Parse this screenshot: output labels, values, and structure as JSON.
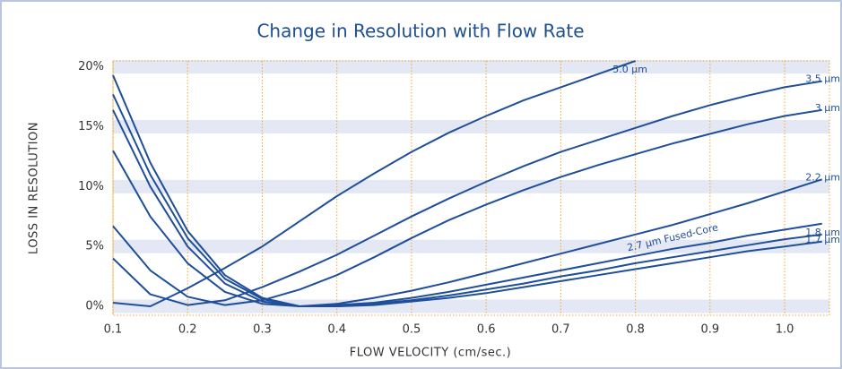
{
  "chart_data": {
    "type": "line",
    "title": "Change in Resolution with Flow Rate",
    "x_label": "FLOW VELOCITY (cm/sec.)",
    "y_label": "LOSS IN RESOLUTION",
    "x": [
      0.1,
      0.15,
      0.2,
      0.25,
      0.3,
      0.35,
      0.4,
      0.45,
      0.5,
      0.55,
      0.6,
      0.65,
      0.7,
      0.75,
      0.8,
      0.85,
      0.9,
      0.95,
      1.0,
      1.05
    ],
    "series": [
      {
        "name": "5.0 µm",
        "color": "#1f4e9a",
        "values": [
          0.3,
          0.0,
          1.5,
          3.2,
          5.0,
          7.1,
          9.2,
          11.1,
          12.9,
          14.5,
          15.9,
          17.2,
          18.3,
          19.4,
          20.5,
          null,
          null,
          null,
          null,
          null
        ]
      },
      {
        "name": "3.5 µm",
        "color": "#1f4e9a",
        "values": [
          4.0,
          1.0,
          0.1,
          0.5,
          1.6,
          2.9,
          4.3,
          5.9,
          7.5,
          9.0,
          10.4,
          11.7,
          12.9,
          13.9,
          14.9,
          15.9,
          16.8,
          17.6,
          18.3,
          18.8
        ]
      },
      {
        "name": "3 µm",
        "color": "#1f4e9a",
        "values": [
          6.7,
          3.0,
          0.8,
          0.1,
          0.5,
          1.4,
          2.6,
          4.1,
          5.7,
          7.2,
          8.5,
          9.7,
          10.8,
          11.8,
          12.7,
          13.6,
          14.4,
          15.2,
          15.9,
          16.4
        ]
      },
      {
        "name": "2.2 µm",
        "color": "#1f4e9a",
        "values": [
          13.0,
          7.5,
          3.6,
          1.2,
          0.2,
          0.0,
          0.2,
          0.7,
          1.3,
          2.0,
          2.8,
          3.6,
          4.4,
          5.2,
          6.0,
          6.8,
          7.7,
          8.6,
          9.6,
          10.6
        ]
      },
      {
        "name": "2.7 µm Fused-Core",
        "color": "#1f4e9a",
        "values": [
          16.4,
          10.0,
          5.0,
          1.9,
          0.4,
          0.0,
          0.1,
          0.3,
          0.7,
          1.2,
          1.8,
          2.4,
          3.0,
          3.6,
          4.2,
          4.8,
          5.3,
          5.9,
          6.4,
          6.9
        ]
      },
      {
        "name": "1.8 µm",
        "color": "#1f4e9a",
        "values": [
          17.7,
          11.0,
          5.7,
          2.3,
          0.6,
          0.0,
          0.0,
          0.2,
          0.5,
          0.9,
          1.4,
          1.9,
          2.5,
          3.0,
          3.6,
          4.1,
          4.6,
          5.1,
          5.6,
          6.0
        ]
      },
      {
        "name": "1.7 µm",
        "color": "#1f4e9a",
        "values": [
          19.3,
          12.0,
          6.3,
          2.6,
          0.7,
          0.0,
          0.0,
          0.1,
          0.4,
          0.7,
          1.1,
          1.6,
          2.1,
          2.6,
          3.1,
          3.6,
          4.1,
          4.6,
          5.0,
          5.4
        ]
      }
    ],
    "xlim": [
      0.1,
      1.06
    ],
    "ylim": [
      -0.75,
      20.5
    ],
    "xticks": [
      0.1,
      0.2,
      0.3,
      0.4,
      0.5,
      0.6,
      0.7,
      0.8,
      0.9,
      {
        "value": 1.0,
        "label": "1.0"
      }
    ],
    "yticks": [
      {
        "value": 0,
        "label": "0%"
      },
      {
        "value": 5,
        "label": "5%"
      },
      {
        "value": 10,
        "label": "10%"
      },
      {
        "value": 15,
        "label": "15%"
      },
      {
        "value": 20,
        "label": "20%"
      }
    ],
    "grid": true
  }
}
